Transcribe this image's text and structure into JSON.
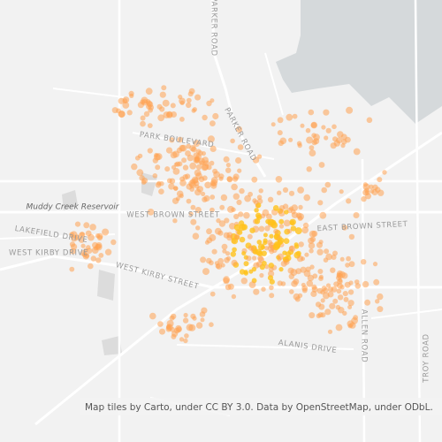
{
  "map_labels": {
    "parker_road_north": "PARKER ROAD",
    "park_boulevard": "PARK BOULEVARD",
    "parker_road_south": "PARKER ROAD",
    "reservoir": "Muddy Creek Reservoir",
    "west_brown_street": "WEST BROWN STREET",
    "east_brown_street": "EAST BROWN STREET",
    "lakefield_drive": "LAKEFIELD DRIVE",
    "west_kirby_drive": "WEST KIRBY DRIVE",
    "west_kirby_street": "WEST KIRBY STREET",
    "allen_road": "ALLEN ROAD",
    "alanis_drive": "ALANIS DRIVE",
    "troy_road": "TROY ROAD"
  },
  "attribution": "Map tiles by Carto, under CC BY 3.0. Data by OpenStreetMap, under ODbL."
}
